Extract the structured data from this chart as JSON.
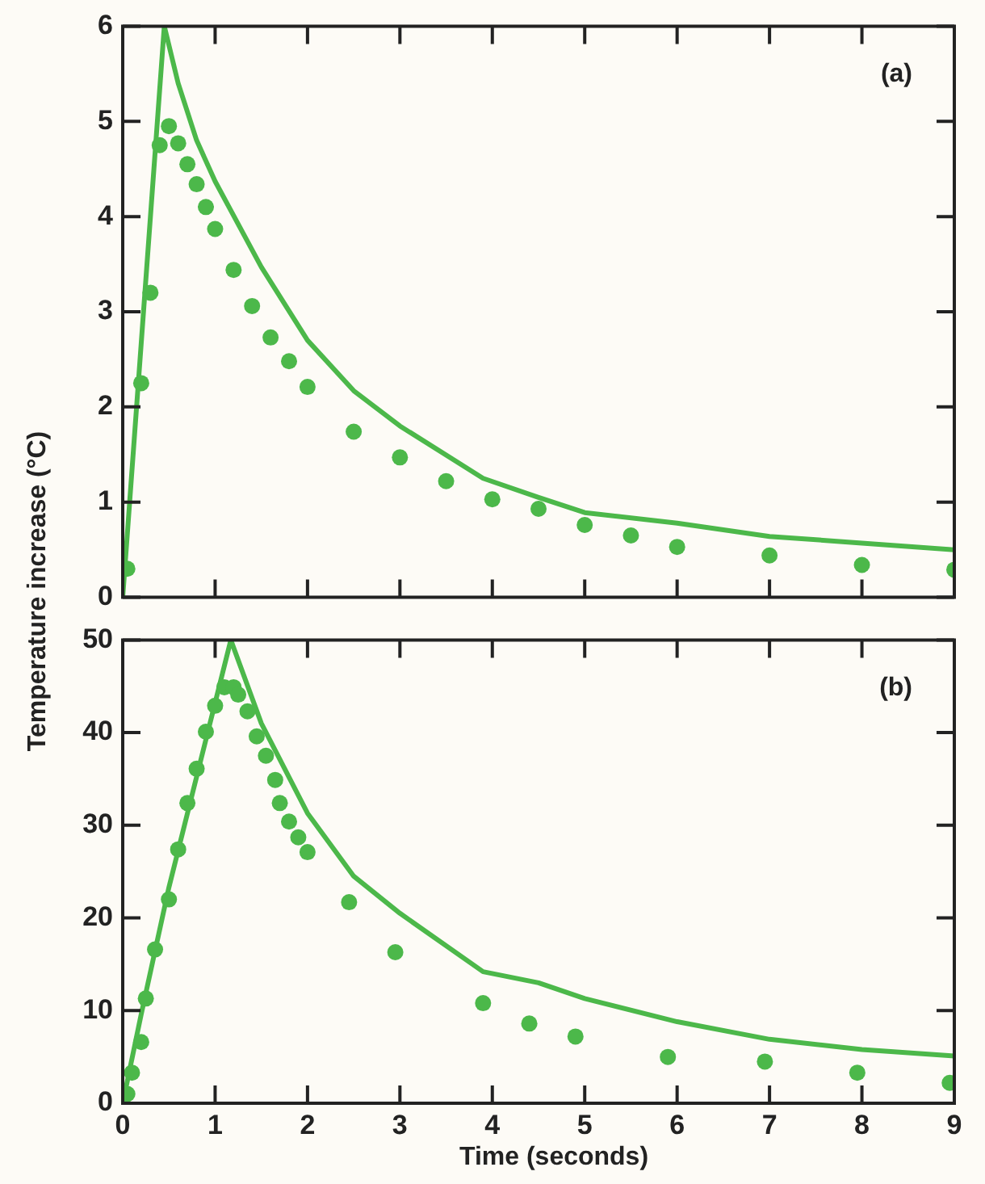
{
  "chart_data": [
    {
      "type": "scatter",
      "ylabel": "Temperature increase (°C)",
      "annotations": [
        "(a)"
      ],
      "xlim": [
        0,
        9
      ],
      "xticks": [
        0,
        1,
        2,
        3,
        4,
        5,
        6,
        7,
        8,
        9
      ],
      "ylim": [
        0,
        6
      ],
      "yticks": [
        0,
        1,
        2,
        3,
        4,
        5,
        6
      ],
      "tick_labels": "y",
      "grid": false,
      "legend": false,
      "series": [
        {
          "type": "scatter",
          "marker": "circle",
          "color": "#4cb84a",
          "x": [
            0.05,
            0.2,
            0.3,
            0.4,
            0.5,
            0.6,
            0.7,
            0.8,
            0.9,
            1.0,
            1.2,
            1.4,
            1.6,
            1.8,
            2.0,
            2.5,
            3,
            3.5,
            4,
            4.5,
            5,
            5.5,
            6,
            7,
            8,
            9
          ],
          "values": [
            0.3,
            2.25,
            3.2,
            4.75,
            4.95,
            4.77,
            4.55,
            4.34,
            4.1,
            3.87,
            3.44,
            3.06,
            2.73,
            2.48,
            2.21,
            1.74,
            1.47,
            1.22,
            1.03,
            0.93,
            0.76,
            0.65,
            0.53,
            0.44,
            0.34,
            0.29
          ]
        },
        {
          "type": "line",
          "marker": "none",
          "color": "#4cb84a",
          "x": [
            0,
            0.45,
            0.6,
            0.8,
            1,
            1.5,
            2,
            2.5,
            3,
            3.9,
            4.5,
            5,
            6,
            7,
            8,
            9
          ],
          "values": [
            0,
            6,
            5.4,
            4.8,
            4.37,
            3.47,
            2.7,
            2.17,
            1.8,
            1.25,
            1.05,
            0.89,
            0.78,
            0.64,
            0.57,
            0.5
          ]
        }
      ]
    },
    {
      "type": "scatter",
      "xlabel": "Time (seconds)",
      "annotations": [
        "(b)"
      ],
      "xlim": [
        0,
        9
      ],
      "xticks": [
        0,
        1,
        2,
        3,
        4,
        5,
        6,
        7,
        8,
        9
      ],
      "ylim": [
        0,
        50
      ],
      "yticks": [
        0,
        10,
        20,
        30,
        40,
        50
      ],
      "grid": false,
      "legend": false,
      "series": [
        {
          "type": "scatter",
          "marker": "circle",
          "color": "#4cb84a",
          "x": [
            0.05,
            0.1,
            0.2,
            0.25,
            0.35,
            0.5,
            0.6,
            0.7,
            0.8,
            0.9,
            1.0,
            1.1,
            1.2,
            1.25,
            1.35,
            1.45,
            1.55,
            1.65,
            1.7,
            1.8,
            1.9,
            2.0,
            2.45,
            2.95,
            3.9,
            4.4,
            4.9,
            5.9,
            6.95,
            7.95,
            8.95
          ],
          "values": [
            1.0,
            3.3,
            6.6,
            11.3,
            16.6,
            22,
            27.4,
            32.4,
            36.1,
            40.1,
            42.9,
            44.9,
            44.9,
            44.1,
            42.3,
            39.6,
            37.5,
            34.9,
            32.4,
            30.4,
            28.7,
            27.1,
            21.7,
            16.3,
            10.8,
            8.6,
            7.2,
            5.0,
            4.5,
            3.3,
            2.2
          ]
        },
        {
          "type": "line",
          "marker": "none",
          "color": "#4cb84a",
          "x": [
            0,
            0.2,
            0.5,
            1.17,
            1.5,
            2,
            2.5,
            3,
            3.9,
            4.5,
            5,
            6,
            7,
            8,
            9
          ],
          "values": [
            0,
            9.6,
            23.3,
            50,
            41,
            31.3,
            24.5,
            20.5,
            14.2,
            13,
            11.3,
            8.8,
            6.9,
            5.8,
            5.1
          ]
        }
      ]
    }
  ]
}
